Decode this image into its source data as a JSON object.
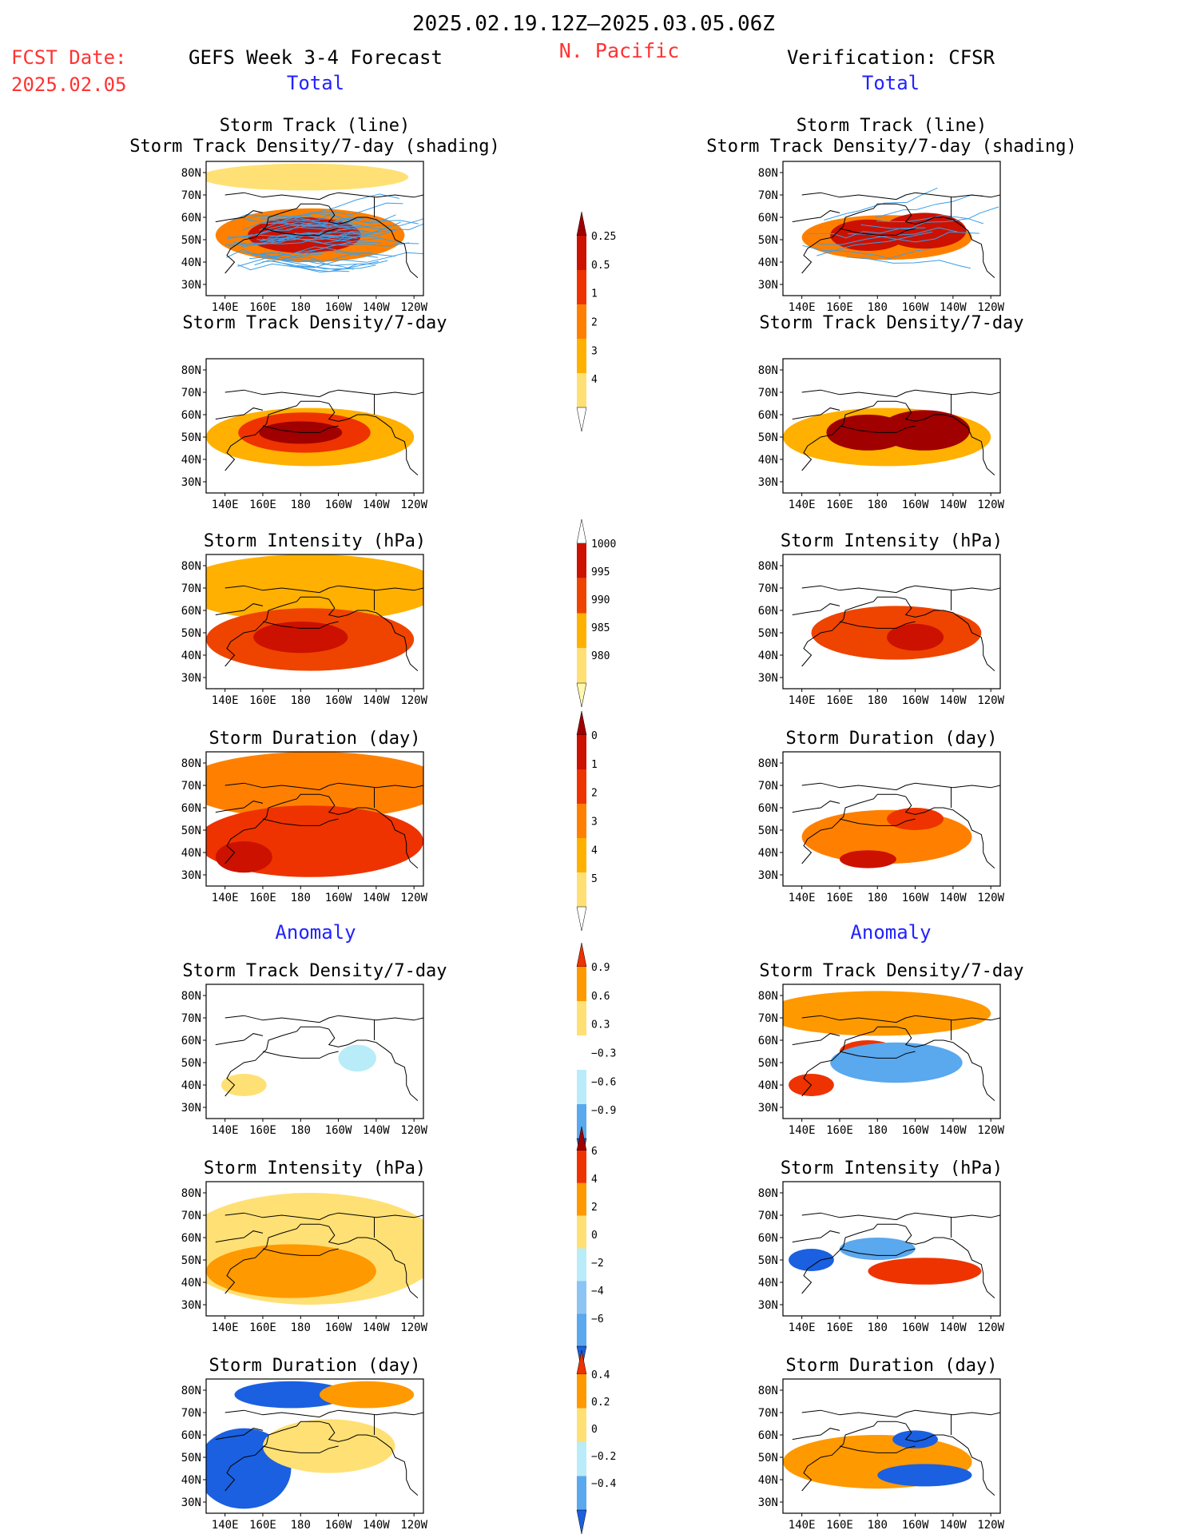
{
  "header": {
    "period": "2025.02.19.12Z–2025.03.05.06Z",
    "region": "N. Pacific",
    "fcst_label": "FCST Date:",
    "fcst_date": "2025.02.05",
    "left_title": "GEFS Week 3-4 Forecast",
    "right_title": "Verification: CFSR",
    "total_label": "Total",
    "anomaly_label": "Anomaly"
  },
  "colors": {
    "header_red": "#ff3333",
    "section_blue": "#2222ff",
    "track_line": "#3a9ee8"
  },
  "axes": {
    "x_ticks": [
      "140E",
      "160E",
      "180",
      "160W",
      "140W",
      "120W"
    ],
    "y_ticks": [
      "80N",
      "70N",
      "60N",
      "50N",
      "40N",
      "30N"
    ]
  },
  "chart_data": [
    {
      "type": "heatmap",
      "id": "fcst-total-track",
      "source": "GEFS",
      "title": "Storm Track (line)",
      "subtitle": "Storm Track Density/7-day (shading)",
      "scale": "density",
      "lon_range": [
        130,
        245
      ],
      "lat_range": [
        25,
        85
      ],
      "features": [
        {
          "lon": 185,
          "lat": 52,
          "rx": 50,
          "ry": 12,
          "level": 3
        },
        {
          "lon": 182,
          "lat": 52,
          "rx": 30,
          "ry": 8,
          "level": 5
        },
        {
          "lon": 182,
          "lat": 78,
          "rx": 55,
          "ry": 6,
          "level": 1
        }
      ],
      "tracks": true
    },
    {
      "type": "heatmap",
      "id": "cfsr-total-track",
      "source": "CFSR",
      "title": "Storm Track (line)",
      "subtitle": "Storm Track Density/7-day (shading)",
      "scale": "density",
      "lon_range": [
        130,
        245
      ],
      "lat_range": [
        25,
        85
      ],
      "features": [
        {
          "lon": 185,
          "lat": 51,
          "rx": 45,
          "ry": 10,
          "level": 3
        },
        {
          "lon": 175,
          "lat": 52,
          "rx": 20,
          "ry": 7,
          "level": 5
        },
        {
          "lon": 205,
          "lat": 54,
          "rx": 22,
          "ry": 8,
          "level": 5
        }
      ],
      "tracks": true
    },
    {
      "type": "heatmap",
      "id": "fcst-total-density",
      "source": "GEFS",
      "title": "Storm Track Density/7-day",
      "scale": "density",
      "lon_range": [
        130,
        245
      ],
      "lat_range": [
        25,
        85
      ],
      "features": [
        {
          "lon": 185,
          "lat": 50,
          "rx": 55,
          "ry": 13,
          "level": 2
        },
        {
          "lon": 182,
          "lat": 52,
          "rx": 35,
          "ry": 9,
          "level": 4
        },
        {
          "lon": 180,
          "lat": 52,
          "rx": 22,
          "ry": 5,
          "level": 6
        }
      ],
      "tracks": false
    },
    {
      "type": "heatmap",
      "id": "cfsr-total-density",
      "source": "CFSR",
      "title": "Storm Track Density/7-day",
      "scale": "density",
      "lon_range": [
        130,
        245
      ],
      "lat_range": [
        25,
        85
      ],
      "features": [
        {
          "lon": 185,
          "lat": 50,
          "rx": 55,
          "ry": 13,
          "level": 2
        },
        {
          "lon": 175,
          "lat": 52,
          "rx": 22,
          "ry": 8,
          "level": 6
        },
        {
          "lon": 205,
          "lat": 53,
          "rx": 24,
          "ry": 9,
          "level": 6
        }
      ],
      "tracks": false
    },
    {
      "type": "heatmap",
      "id": "fcst-total-intensity",
      "source": "GEFS",
      "title": "Storm Intensity (hPa)",
      "scale": "intensity",
      "lon_range": [
        130,
        245
      ],
      "lat_range": [
        25,
        85
      ],
      "features": [
        {
          "lon": 185,
          "lat": 70,
          "rx": 70,
          "ry": 15,
          "level": 2
        },
        {
          "lon": 185,
          "lat": 47,
          "rx": 55,
          "ry": 14,
          "level": 3
        },
        {
          "lon": 180,
          "lat": 48,
          "rx": 25,
          "ry": 7,
          "level": 4
        }
      ],
      "tracks": false
    },
    {
      "type": "heatmap",
      "id": "cfsr-total-intensity",
      "source": "CFSR",
      "title": "Storm Intensity (hPa)",
      "scale": "intensity",
      "lon_range": [
        130,
        245
      ],
      "lat_range": [
        25,
        85
      ],
      "features": [
        {
          "lon": 190,
          "lat": 50,
          "rx": 45,
          "ry": 12,
          "level": 3
        },
        {
          "lon": 200,
          "lat": 48,
          "rx": 15,
          "ry": 6,
          "level": 4
        }
      ],
      "tracks": false
    },
    {
      "type": "heatmap",
      "id": "fcst-total-duration",
      "source": "GEFS",
      "title": "Storm Duration (day)",
      "scale": "duration",
      "lon_range": [
        130,
        245
      ],
      "lat_range": [
        25,
        85
      ],
      "features": [
        {
          "lon": 187,
          "lat": 70,
          "rx": 70,
          "ry": 15,
          "level": 3
        },
        {
          "lon": 185,
          "lat": 45,
          "rx": 60,
          "ry": 16,
          "level": 4
        },
        {
          "lon": 150,
          "lat": 38,
          "rx": 15,
          "ry": 7,
          "level": 5
        }
      ],
      "tracks": false
    },
    {
      "type": "heatmap",
      "id": "cfsr-total-duration",
      "source": "CFSR",
      "title": "Storm Duration (day)",
      "scale": "duration",
      "lon_range": [
        130,
        245
      ],
      "lat_range": [
        25,
        85
      ],
      "features": [
        {
          "lon": 185,
          "lat": 47,
          "rx": 45,
          "ry": 12,
          "level": 3
        },
        {
          "lon": 200,
          "lat": 55,
          "rx": 15,
          "ry": 5,
          "level": 4
        },
        {
          "lon": 175,
          "lat": 37,
          "rx": 15,
          "ry": 4,
          "level": 5
        }
      ],
      "tracks": false
    },
    {
      "type": "heatmap",
      "id": "fcst-anom-density",
      "source": "GEFS",
      "title": "Storm Track Density/7-day",
      "scale": "anom_density",
      "lon_range": [
        130,
        245
      ],
      "lat_range": [
        25,
        85
      ],
      "features": [
        {
          "lon": 182,
          "lat": 78,
          "rx": 50,
          "ry": 5,
          "level": 3
        },
        {
          "lon": 182,
          "lat": 48,
          "rx": 20,
          "ry": 6,
          "level": 3
        },
        {
          "lon": 210,
          "lat": 52,
          "rx": 10,
          "ry": 6,
          "level": 4
        },
        {
          "lon": 150,
          "lat": 40,
          "rx": 12,
          "ry": 5,
          "level": 2
        }
      ],
      "tracks": false
    },
    {
      "type": "heatmap",
      "id": "cfsr-anom-density",
      "source": "CFSR",
      "title": "Storm Track Density/7-day",
      "scale": "anom_density",
      "lon_range": [
        130,
        245
      ],
      "lat_range": [
        25,
        85
      ],
      "features": [
        {
          "lon": 180,
          "lat": 72,
          "rx": 60,
          "ry": 10,
          "level": 1
        },
        {
          "lon": 145,
          "lat": 40,
          "rx": 12,
          "ry": 5,
          "level": 0
        },
        {
          "lon": 175,
          "lat": 55,
          "rx": 15,
          "ry": 5,
          "level": 0
        },
        {
          "lon": 190,
          "lat": 50,
          "rx": 35,
          "ry": 9,
          "level": 5
        }
      ],
      "tracks": false
    },
    {
      "type": "heatmap",
      "id": "fcst-anom-intensity",
      "source": "GEFS",
      "title": "Storm Intensity (hPa)",
      "scale": "anom_intensity",
      "lon_range": [
        130,
        245
      ],
      "lat_range": [
        25,
        85
      ],
      "features": [
        {
          "lon": 185,
          "lat": 55,
          "rx": 70,
          "ry": 25,
          "level": 3
        },
        {
          "lon": 175,
          "lat": 45,
          "rx": 45,
          "ry": 12,
          "level": 2
        }
      ],
      "tracks": false
    },
    {
      "type": "heatmap",
      "id": "cfsr-anom-intensity",
      "source": "CFSR",
      "title": "Storm Intensity (hPa)",
      "scale": "anom_intensity",
      "lon_range": [
        130,
        245
      ],
      "lat_range": [
        25,
        85
      ],
      "features": [
        {
          "lon": 145,
          "lat": 50,
          "rx": 12,
          "ry": 5,
          "level": 7
        },
        {
          "lon": 180,
          "lat": 55,
          "rx": 20,
          "ry": 5,
          "level": 6
        },
        {
          "lon": 205,
          "lat": 45,
          "rx": 30,
          "ry": 6,
          "level": 1
        }
      ],
      "tracks": false
    },
    {
      "type": "heatmap",
      "id": "fcst-anom-duration",
      "source": "GEFS",
      "title": "Storm Duration (day)",
      "scale": "anom_duration",
      "lon_range": [
        130,
        245
      ],
      "lat_range": [
        25,
        85
      ],
      "features": [
        {
          "lon": 150,
          "lat": 45,
          "rx": 25,
          "ry": 18,
          "level": 5
        },
        {
          "lon": 175,
          "lat": 78,
          "rx": 30,
          "ry": 6,
          "level": 5
        },
        {
          "lon": 215,
          "lat": 78,
          "rx": 25,
          "ry": 6,
          "level": 1
        },
        {
          "lon": 195,
          "lat": 55,
          "rx": 35,
          "ry": 12,
          "level": 2
        }
      ],
      "tracks": false
    },
    {
      "type": "heatmap",
      "id": "cfsr-anom-duration",
      "source": "CFSR",
      "title": "Storm Duration (day)",
      "scale": "anom_duration",
      "lon_range": [
        130,
        245
      ],
      "lat_range": [
        25,
        85
      ],
      "features": [
        {
          "lon": 180,
          "lat": 48,
          "rx": 50,
          "ry": 12,
          "level": 1
        },
        {
          "lon": 205,
          "lat": 42,
          "rx": 25,
          "ry": 5,
          "level": 5
        },
        {
          "lon": 200,
          "lat": 58,
          "rx": 12,
          "ry": 4,
          "level": 5
        }
      ],
      "tracks": false
    }
  ],
  "colorbars": {
    "density": {
      "labels": [
        "0.25",
        "0.5",
        "1",
        "2",
        "3",
        "4"
      ],
      "colors": [
        "#fff8b0",
        "#ffe074",
        "#ffb000",
        "#ff8000",
        "#ee3300",
        "#cc1100",
        "#a00000"
      ]
    },
    "intensity": {
      "labels": [
        "1000",
        "995",
        "990",
        "985",
        "980"
      ],
      "colors": [
        "#fff8b0",
        "#ffe074",
        "#ffb000",
        "#ee4400",
        "#cc1100",
        "#a00000"
      ]
    },
    "duration": {
      "labels": [
        "0",
        "1",
        "2",
        "3",
        "4",
        "5"
      ],
      "colors": [
        "#fff8b0",
        "#ffe074",
        "#ffb000",
        "#ff8000",
        "#ee3300",
        "#cc1100",
        "#a00000"
      ]
    },
    "anom_density": {
      "labels": [
        "0.9",
        "0.6",
        "0.3",
        "−0.3",
        "−0.6",
        "−0.9"
      ],
      "colors": [
        "#ee3300",
        "#ff9900",
        "#ffe074",
        "#ffffff",
        "#b8ecf8",
        "#5aa8ee",
        "#1a60e0"
      ]
    },
    "anom_intensity": {
      "labels": [
        "6",
        "4",
        "2",
        "0",
        "−2",
        "−4",
        "−6"
      ],
      "colors": [
        "#a00000",
        "#ee3300",
        "#ff9900",
        "#ffe074",
        "#b8ecf8",
        "#8cc4f4",
        "#5aa8ee",
        "#1a60e0"
      ]
    },
    "anom_duration": {
      "labels": [
        "0.4",
        "0.2",
        "0",
        "−0.2",
        "−0.4"
      ],
      "colors": [
        "#ee3300",
        "#ff9900",
        "#ffe074",
        "#b8ecf8",
        "#5aa8ee",
        "#1a60e0"
      ]
    }
  }
}
